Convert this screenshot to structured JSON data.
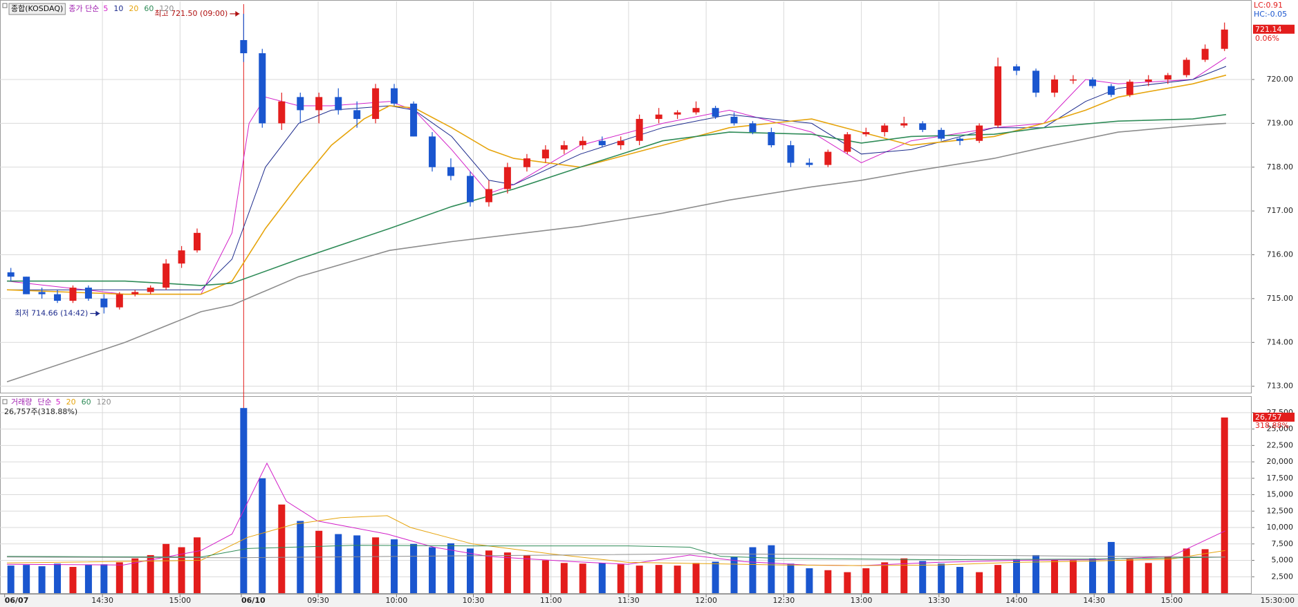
{
  "chart_data": [
    {
      "type": "candlestick",
      "title": "종합(KOSDAQ)",
      "legend_title": "종가 단순",
      "lc_label": "LC:0.91",
      "hc_label": "HC:-0.05",
      "change_label": "0.06%",
      "up_color": "#e31d1c",
      "down_color": "#1a56cf",
      "x": [
        0.5,
        2.5,
        4.5,
        6.5,
        8.5,
        10.5,
        12.5,
        14.5,
        16.5,
        18.5,
        20.5,
        22.5,
        24.5,
        30.5,
        32.9,
        35.4,
        37.8,
        40.2,
        42.7,
        45.1,
        47.5,
        49.9,
        52.4,
        54.8,
        57.2,
        59.7,
        62.1,
        64.5,
        67.0,
        69.4,
        71.8,
        74.2,
        76.7,
        79.1,
        81.5,
        84.0,
        86.4,
        88.8,
        91.3,
        93.7,
        96.1,
        98.5,
        101.0,
        103.4,
        105.8,
        108.3,
        110.7,
        113.1,
        115.6,
        118.0,
        120.4,
        122.8,
        125.3,
        127.7,
        130.1,
        132.6,
        135.0,
        137.4,
        139.9,
        142.3,
        144.7,
        147.1,
        149.6,
        152.0,
        154.4,
        156.9
      ],
      "open": [
        715.6,
        715.5,
        715.15,
        715.1,
        714.95,
        715.25,
        715.0,
        714.8,
        715.1,
        715.15,
        715.25,
        715.8,
        716.1,
        720.9,
        720.6,
        719.0,
        719.6,
        719.3,
        719.6,
        719.3,
        719.1,
        719.8,
        719.45,
        718.7,
        718.0,
        717.8,
        717.2,
        717.5,
        718.0,
        718.2,
        718.4,
        718.5,
        718.6,
        718.5,
        718.6,
        719.1,
        719.2,
        719.25,
        719.35,
        719.15,
        719.0,
        718.8,
        718.5,
        718.1,
        718.05,
        718.35,
        718.75,
        718.8,
        718.95,
        719.0,
        718.85,
        718.65,
        718.6,
        718.95,
        720.3,
        720.2,
        719.7,
        720.0,
        720.0,
        719.85,
        719.65,
        719.95,
        720.0,
        720.1,
        720.45,
        720.7
      ],
      "high": [
        715.7,
        715.5,
        715.25,
        715.2,
        715.3,
        715.3,
        715.1,
        715.15,
        715.2,
        715.3,
        715.9,
        716.2,
        716.6,
        721.5,
        720.7,
        719.7,
        719.7,
        719.7,
        719.8,
        719.5,
        719.9,
        719.9,
        719.5,
        718.8,
        718.2,
        717.9,
        717.7,
        718.1,
        718.3,
        718.5,
        718.6,
        718.7,
        718.7,
        718.7,
        719.2,
        719.35,
        719.3,
        719.5,
        719.4,
        719.25,
        719.05,
        718.9,
        718.6,
        718.2,
        718.4,
        718.8,
        718.9,
        719.0,
        719.15,
        719.05,
        718.9,
        718.7,
        719.0,
        720.5,
        720.35,
        720.25,
        720.1,
        720.1,
        720.05,
        719.9,
        720.0,
        720.1,
        720.15,
        720.5,
        720.8,
        721.3
      ],
      "low": [
        715.4,
        715.1,
        715.0,
        714.9,
        714.9,
        714.95,
        714.66,
        714.75,
        715.05,
        715.1,
        715.2,
        715.7,
        716.05,
        720.4,
        718.9,
        718.85,
        719.0,
        719.0,
        719.2,
        718.9,
        719.0,
        719.4,
        718.7,
        717.9,
        717.7,
        717.1,
        717.1,
        717.4,
        717.9,
        718.1,
        718.3,
        718.4,
        718.45,
        718.4,
        718.5,
        719.0,
        719.1,
        719.2,
        719.1,
        718.95,
        718.75,
        718.45,
        718.0,
        718.0,
        718.0,
        718.3,
        718.7,
        718.7,
        718.9,
        718.8,
        718.6,
        718.5,
        718.55,
        718.9,
        720.1,
        719.6,
        719.6,
        719.9,
        719.8,
        719.6,
        719.6,
        719.85,
        719.9,
        720.05,
        720.4,
        720.65
      ],
      "close": [
        715.5,
        715.1,
        715.1,
        714.95,
        715.25,
        715.0,
        714.8,
        715.1,
        715.15,
        715.25,
        715.8,
        716.1,
        716.5,
        720.6,
        719.0,
        719.5,
        719.3,
        719.6,
        719.3,
        719.1,
        719.8,
        719.45,
        718.7,
        718.0,
        717.8,
        717.2,
        717.5,
        718.0,
        718.2,
        718.4,
        718.5,
        718.6,
        718.5,
        718.6,
        719.1,
        719.2,
        719.25,
        719.35,
        719.15,
        719.0,
        718.8,
        718.5,
        718.1,
        718.05,
        718.35,
        718.75,
        718.8,
        718.95,
        719.0,
        718.85,
        718.65,
        718.6,
        718.95,
        720.3,
        720.2,
        719.7,
        720.0,
        720.0,
        719.85,
        719.65,
        719.95,
        720.0,
        720.1,
        720.45,
        720.7,
        721.14
      ],
      "ylim": [
        712.9,
        721.72
      ],
      "yticks": [
        {
          "value": 713,
          "label": "713.00"
        },
        {
          "value": 714,
          "label": "714.00"
        },
        {
          "value": 715,
          "label": "715.00"
        },
        {
          "value": 716,
          "label": "716.00"
        },
        {
          "value": 717,
          "label": "717.00"
        },
        {
          "value": 718,
          "label": "718.00"
        },
        {
          "value": 719,
          "label": "719.00"
        },
        {
          "value": 720,
          "label": "720.00"
        }
      ],
      "grid": true,
      "series": [
        {
          "name": "5",
          "color": "#d21fc8",
          "x": [
            0,
            15.2,
            25,
            29,
            31.2,
            33.3,
            37.6,
            41.8,
            49.3,
            52.5,
            57.3,
            62.1,
            65.3,
            73.9,
            84.5,
            93.1,
            103.7,
            110.1,
            116.5,
            127.2,
            133.6,
            139,
            143.2,
            152.8,
            157.1
          ],
          "values": [
            715.4,
            715.1,
            715.1,
            716.5,
            719.0,
            719.6,
            719.4,
            719.4,
            719.5,
            719.3,
            718.4,
            717.4,
            717.6,
            718.5,
            719.0,
            719.3,
            718.8,
            718.1,
            718.6,
            718.9,
            719.0,
            720.0,
            719.9,
            720.0,
            720.5
          ]
        },
        {
          "name": "10",
          "color": "#1c2a8c",
          "x": [
            0,
            15.2,
            25,
            29,
            33.3,
            37.6,
            41.8,
            49.3,
            52.5,
            57.3,
            62.1,
            65.3,
            73.9,
            84.5,
            93.1,
            103.7,
            110.1,
            116.5,
            127.2,
            133.6,
            139,
            143.2,
            152.8,
            157.1
          ],
          "values": [
            715.2,
            715.2,
            715.2,
            715.9,
            718.0,
            719.0,
            719.3,
            719.4,
            719.3,
            718.7,
            717.7,
            717.6,
            718.3,
            718.9,
            719.2,
            719.0,
            718.3,
            718.4,
            718.9,
            718.9,
            719.5,
            719.8,
            720.0,
            720.3
          ]
        },
        {
          "name": "20",
          "color": "#e6a40c",
          "x": [
            0,
            15.2,
            25,
            29,
            33.3,
            37.6,
            41.8,
            46,
            49.3,
            52.5,
            57.3,
            62.1,
            65.3,
            73.9,
            84.5,
            93.1,
            103.7,
            110.1,
            116.5,
            127.2,
            133.6,
            139,
            143.2,
            152.8,
            157.1
          ],
          "values": [
            715.2,
            715.1,
            715.1,
            715.4,
            716.6,
            717.6,
            718.5,
            719.1,
            719.4,
            719.35,
            718.9,
            718.4,
            718.2,
            718.0,
            718.5,
            718.9,
            719.1,
            718.8,
            718.5,
            718.7,
            719.0,
            719.3,
            719.6,
            719.9,
            720.1
          ]
        },
        {
          "name": "60",
          "color": "#2e8b57",
          "x": [
            0,
            15.2,
            25,
            29,
            37.6,
            49.3,
            57.3,
            65.3,
            73.9,
            84.5,
            93.1,
            103.7,
            110.1,
            116.5,
            127.2,
            133.6,
            143.2,
            152.8,
            157.1
          ],
          "values": [
            715.4,
            715.4,
            715.3,
            715.35,
            715.9,
            716.6,
            717.1,
            717.5,
            718.0,
            718.6,
            718.8,
            718.75,
            718.55,
            718.7,
            718.75,
            718.9,
            719.05,
            719.1,
            719.2
          ]
        },
        {
          "name": "120",
          "color": "#8c8c8c",
          "x": [
            0,
            15.2,
            25,
            29,
            37.6,
            49.3,
            57.3,
            73.9,
            84.5,
            93.1,
            103.7,
            110.1,
            116.5,
            127.2,
            133.6,
            143.2,
            152.8,
            157.1
          ],
          "values": [
            713.1,
            714.0,
            714.7,
            714.85,
            715.5,
            716.1,
            716.3,
            716.65,
            716.95,
            717.25,
            717.55,
            717.7,
            717.9,
            718.2,
            718.45,
            718.8,
            718.95,
            719.0
          ]
        }
      ],
      "annotations": [
        {
          "text": "최고 721.50 (09:00)",
          "x": 30.5,
          "y": 721.5,
          "color": "#b01010"
        },
        {
          "text": "최저 714.66 (14:42)",
          "x": 12.5,
          "y": 714.66,
          "color": "#1c2a8c"
        }
      ]
    },
    {
      "type": "volume",
      "title": "거래량",
      "legend_title": "단순",
      "summary": "26,757주(318.88%)",
      "last_label": "26,757",
      "last_ratio": "318.88%",
      "time_label": "15:30:00",
      "values": [
        4200,
        4300,
        4100,
        4500,
        4000,
        4300,
        4400,
        4700,
        5300,
        5800,
        7500,
        7000,
        8500,
        28200,
        17500,
        13500,
        11000,
        9500,
        9000,
        8800,
        8500,
        8200,
        7500,
        7000,
        7600,
        6800,
        6500,
        6200,
        5800,
        5000,
        4600,
        4500,
        4600,
        4400,
        4200,
        4300,
        4200,
        4600,
        4800,
        5500,
        7000,
        7300,
        4500,
        3800,
        3500,
        3200,
        3800,
        4700,
        5300,
        4900,
        4500,
        4000,
        3200,
        4300,
        5200,
        5800,
        5000,
        5000,
        5300,
        7800,
        5200,
        4600,
        5600,
        6800,
        6700,
        26757
      ],
      "ylim": [
        0,
        29800
      ],
      "yticks": [
        {
          "value": 2500,
          "label": "2,500"
        },
        {
          "value": 5000,
          "label": "5,000"
        },
        {
          "value": 7500,
          "label": "7,500"
        },
        {
          "value": 10000,
          "label": "10,000"
        },
        {
          "value": 12500,
          "label": "12,500"
        },
        {
          "value": 15000,
          "label": "15,000"
        },
        {
          "value": 17500,
          "label": "17,500"
        },
        {
          "value": 20000,
          "label": "20,000"
        },
        {
          "value": 22500,
          "label": "22,500"
        },
        {
          "value": 25000,
          "label": "25,000"
        },
        {
          "value": 27500,
          "label": "27,500"
        }
      ],
      "xlim": [
        -0.9,
        160.4
      ],
      "xticks": [
        {
          "value": -0.3,
          "label": "06/07"
        },
        {
          "value": 12.3,
          "label": "14:30"
        },
        {
          "value": 22.3,
          "label": "15:00"
        },
        {
          "value": 30.2,
          "label": "06/10"
        },
        {
          "value": 40.1,
          "label": "09:30"
        },
        {
          "value": 50.2,
          "label": "10:00"
        },
        {
          "value": 60.1,
          "label": "10:30"
        },
        {
          "value": 70.1,
          "label": "11:00"
        },
        {
          "value": 80.1,
          "label": "11:30"
        },
        {
          "value": 90.1,
          "label": "12:00"
        },
        {
          "value": 100.1,
          "label": "12:30"
        },
        {
          "value": 110.1,
          "label": "13:00"
        },
        {
          "value": 120.1,
          "label": "13:30"
        },
        {
          "value": 130.1,
          "label": "14:00"
        },
        {
          "value": 140.1,
          "label": "14:30"
        },
        {
          "value": 150.1,
          "label": "15:00"
        }
      ],
      "grid": true,
      "series": [
        {
          "name": "5",
          "color": "#d21fc8",
          "x": [
            0,
            15,
            25,
            29,
            33.5,
            36,
            40,
            49,
            55,
            62,
            73,
            80,
            88,
            95,
            103,
            110,
            120,
            130,
            140,
            150,
            157
          ],
          "values": [
            4400,
            4300,
            6500,
            9000,
            19800,
            14000,
            11000,
            9000,
            7000,
            5600,
            4800,
            4400,
            5800,
            4800,
            4300,
            4200,
            4700,
            5000,
            5100,
            5600,
            9500
          ]
        },
        {
          "name": "20",
          "color": "#e6a40c",
          "x": [
            0,
            25,
            31,
            37,
            43,
            49,
            52,
            60,
            70,
            80,
            90,
            100,
            110,
            120,
            130,
            140,
            150,
            157
          ],
          "values": [
            4600,
            5000,
            8500,
            10500,
            11500,
            11800,
            10000,
            7500,
            6000,
            4700,
            4500,
            4300,
            4200,
            4300,
            4700,
            4900,
            5200,
            6500
          ]
        },
        {
          "name": "60",
          "color": "#2e8b57",
          "x": [
            0,
            25,
            31,
            45,
            60,
            80,
            88,
            92,
            100,
            120,
            140,
            157
          ],
          "values": [
            5600,
            5500,
            6800,
            7300,
            7200,
            7200,
            7000,
            5600,
            5300,
            5100,
            5200,
            5500
          ]
        },
        {
          "name": "120",
          "color": "#8c8c8c",
          "x": [
            0,
            30,
            60,
            90,
            120,
            157
          ],
          "values": [
            5500,
            5400,
            5700,
            6000,
            5800,
            5500
          ]
        }
      ]
    }
  ]
}
